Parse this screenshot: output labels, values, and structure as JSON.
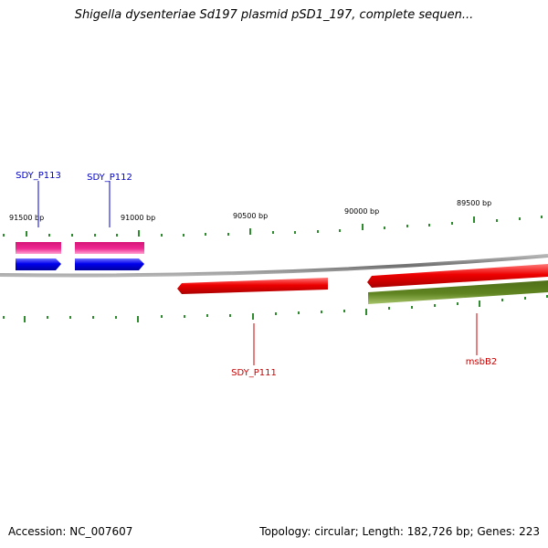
{
  "title": "Shigella dysenteriae Sd197 plasmid pSD1_197, complete sequen...",
  "footer": {
    "accession": "Accession: NC_007607",
    "summary": "Topology: circular; Length: 182,726 bp; Genes: 223"
  },
  "ruler": {
    "labels": [
      "91500 bp",
      "91000 bp",
      "90500 bp",
      "90000 bp",
      "89500 bp"
    ]
  },
  "genes": [
    {
      "name": "SDY_P113",
      "strand": "+",
      "color": "#0000cc"
    },
    {
      "name": "SDY_P112",
      "strand": "+",
      "color": "#0000cc"
    },
    {
      "name": "SDY_P111",
      "strand": "-",
      "color": "#cc0000"
    },
    {
      "name": "msbB2",
      "strand": "-",
      "color": "#cc0000"
    }
  ],
  "colors": {
    "backbone": "#808080",
    "tick": "#2e8b2e",
    "cds_forward": "#0000ee",
    "cds_reverse": "#ee0000",
    "gene_pink": "#ee1f8c",
    "gene_olive": "#5a7d1e"
  }
}
